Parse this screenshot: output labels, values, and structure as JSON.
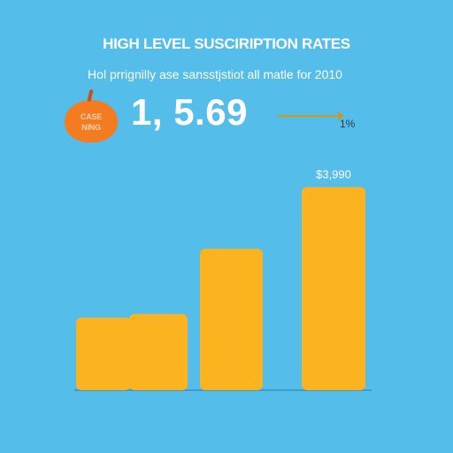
{
  "header": {
    "title": "HIGH LEVEL SUSCIRIPTION RATES",
    "subtitle": "Hol prrignilly ase sansstjstiot all matle for 2010"
  },
  "badge": {
    "icon": "apple-icon",
    "text": "CASE\nNING",
    "color": "#f47b20"
  },
  "kpi": {
    "value": "1, 5.69",
    "change": "1%"
  },
  "chart_data": {
    "type": "bar",
    "categories": [
      "",
      "",
      "",
      ""
    ],
    "values": [
      1.0,
      1.05,
      1.95,
      2.8
    ],
    "ylim": [
      0,
      3.0
    ],
    "grid": false,
    "legend": "none",
    "bar_color": "#fbb320",
    "data_labels": [
      "",
      "",
      "",
      "$3,990"
    ]
  },
  "colors": {
    "background": "#55bdea",
    "bar": "#fbb320",
    "baseline": "#3d8fbf"
  }
}
